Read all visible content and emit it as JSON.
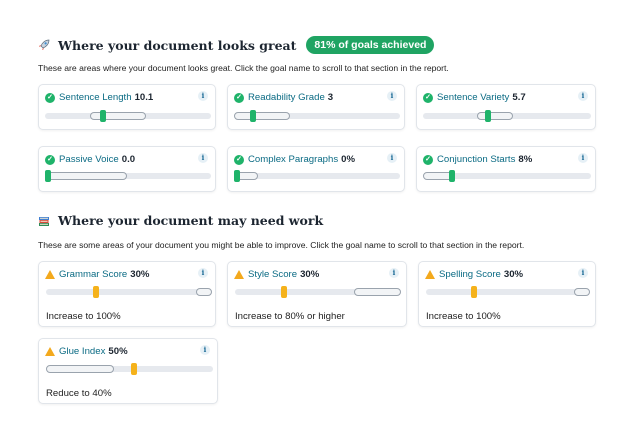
{
  "great": {
    "emoji": "rocket-icon",
    "title": "Where your document looks great",
    "badge": "81% of goals achieved",
    "description": "These are areas where your document looks great. Click the goal name to scroll to that section in the report.",
    "goals": [
      {
        "name": "Sentence Length",
        "value": "10.1"
      },
      {
        "name": "Readability Grade",
        "value": "3"
      },
      {
        "name": "Sentence Variety",
        "value": "5.7"
      },
      {
        "name": "Passive Voice",
        "value": "0.0"
      },
      {
        "name": "Complex Paragraphs",
        "value": "0%"
      },
      {
        "name": "Conjunction Starts",
        "value": "8%"
      }
    ]
  },
  "work": {
    "emoji": "books-icon",
    "title": "Where your document may need work",
    "description": "These are some areas of your document you might be able to improve. Click the goal name to scroll to that section in the report.",
    "goals": [
      {
        "name": "Grammar Score",
        "value": "30%",
        "advice": "Increase to 100%"
      },
      {
        "name": "Style Score",
        "value": "30%",
        "advice": "Increase to 80% or higher"
      },
      {
        "name": "Spelling Score",
        "value": "30%",
        "advice": "Increase to 100%"
      },
      {
        "name": "Glue Index",
        "value": "50%",
        "advice": "Reduce to 40%"
      }
    ]
  },
  "info_symbol": "i",
  "check_symbol": "✓",
  "colors": {
    "accent_green": "#1fb36a",
    "badge_green": "#1fa463",
    "warning_orange": "#f5b21b",
    "goal_link": "#0b6b84"
  }
}
